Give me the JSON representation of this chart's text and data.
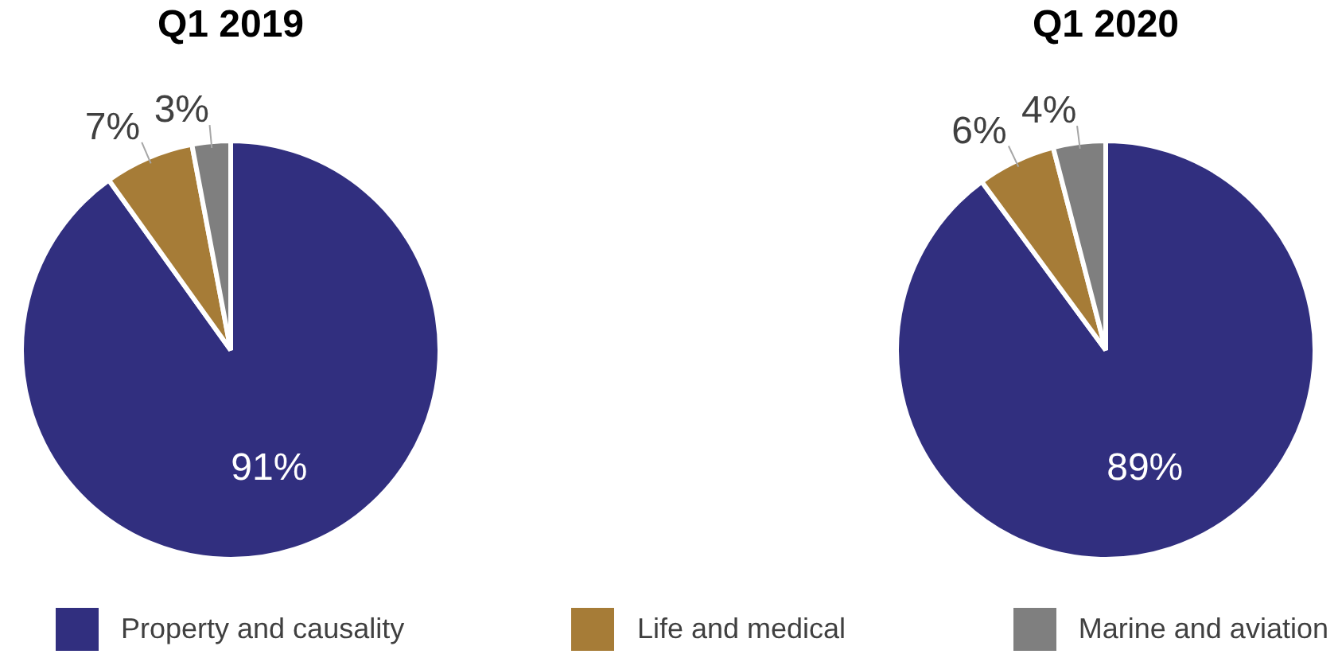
{
  "chart_data": [
    {
      "type": "pie",
      "title": "Q1 2019",
      "categories": [
        "Property and causality",
        "Life and medical",
        "Marine and aviation"
      ],
      "values": [
        91,
        7,
        3
      ],
      "value_labels": [
        "91%",
        "7%",
        "3%"
      ],
      "colors": [
        "#312f7f",
        "#a67c37",
        "#7f7f7f"
      ],
      "legend": "bottom"
    },
    {
      "type": "pie",
      "title": "Q1 2020",
      "categories": [
        null,
        null,
        null
      ],
      "values": [
        89,
        6,
        4
      ],
      "value_labels": [
        "89%",
        "6%",
        "4%"
      ],
      "colors": [
        "#312f7f",
        "#a67c37",
        "#7f7f7f"
      ]
    }
  ]
}
